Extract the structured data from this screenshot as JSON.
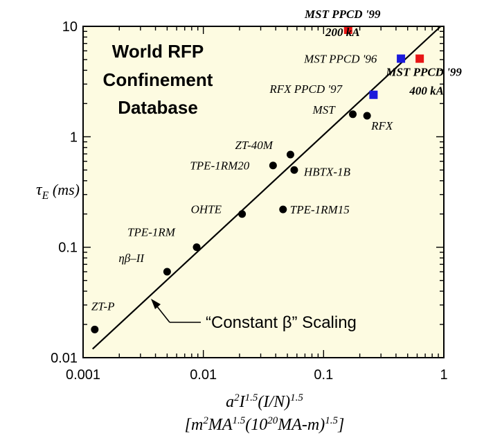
{
  "chart_data": {
    "type": "scatter",
    "title_lines": [
      "World RFP",
      "Confinement",
      "Database"
    ],
    "xlim": [
      0.001,
      1
    ],
    "ylim": [
      0.01,
      10
    ],
    "xscale": "log",
    "yscale": "log",
    "x_ticks": [
      "0.001",
      "0.01",
      "0.1",
      "1"
    ],
    "y_ticks": [
      "0.01",
      "0.1",
      "1",
      "10"
    ],
    "xlabel_line1": "a²I^1.5(I/N)^1.5",
    "xlabel_line2": "[m²MA^1.5(10²⁰MA-m)^1.5]",
    "ylabel": "τE (ms)",
    "background_color": "#fdfbe1",
    "series": [
      {
        "name": "",
        "marker": "circle",
        "color": "#000000",
        "points": [
          {
            "x": 0.00125,
            "y": 0.018,
            "label": "ZT-P"
          },
          {
            "x": 0.005,
            "y": 0.06,
            "label": "ηβ–II"
          },
          {
            "x": 0.0088,
            "y": 0.1,
            "label": "TPE-1RM"
          },
          {
            "x": 0.021,
            "y": 0.2,
            "label": "OHTE"
          },
          {
            "x": 0.038,
            "y": 0.55,
            "label": "TPE-1RM20"
          },
          {
            "x": 0.053,
            "y": 0.69,
            "label": "ZT-40M"
          },
          {
            "x": 0.057,
            "y": 0.5,
            "label": "HBTX-1B"
          },
          {
            "x": 0.046,
            "y": 0.22,
            "label": "TPE-1RM15"
          },
          {
            "x": 0.175,
            "y": 1.6,
            "label": "MST"
          },
          {
            "x": 0.23,
            "y": 1.55,
            "label": "RFX"
          }
        ]
      },
      {
        "name": "",
        "marker": "square",
        "color": "#1a1adb",
        "points": [
          {
            "x": 0.26,
            "y": 2.4,
            "label": "RFX PPCD '97"
          },
          {
            "x": 0.44,
            "y": 5.1,
            "label": "MST PPCD '96"
          }
        ]
      },
      {
        "name": "",
        "marker": "square",
        "color": "#e81515",
        "points": [
          {
            "x": 0.16,
            "y": 9.3,
            "label": "MST PPCD '99 200 kA",
            "label_lines": [
              "MST PPCD '99",
              "200 kA"
            ]
          },
          {
            "x": 0.63,
            "y": 5.1,
            "label": "MST PPCD '99 400 kA",
            "label_lines": [
              "MST PPCD '99",
              "400 kA"
            ]
          }
        ]
      }
    ],
    "scaling_line": {
      "label": "“Constant β” Scaling",
      "from": {
        "x": 0.0012,
        "y": 0.012
      },
      "to": {
        "x": 1.1,
        "y": 11.7
      }
    }
  }
}
